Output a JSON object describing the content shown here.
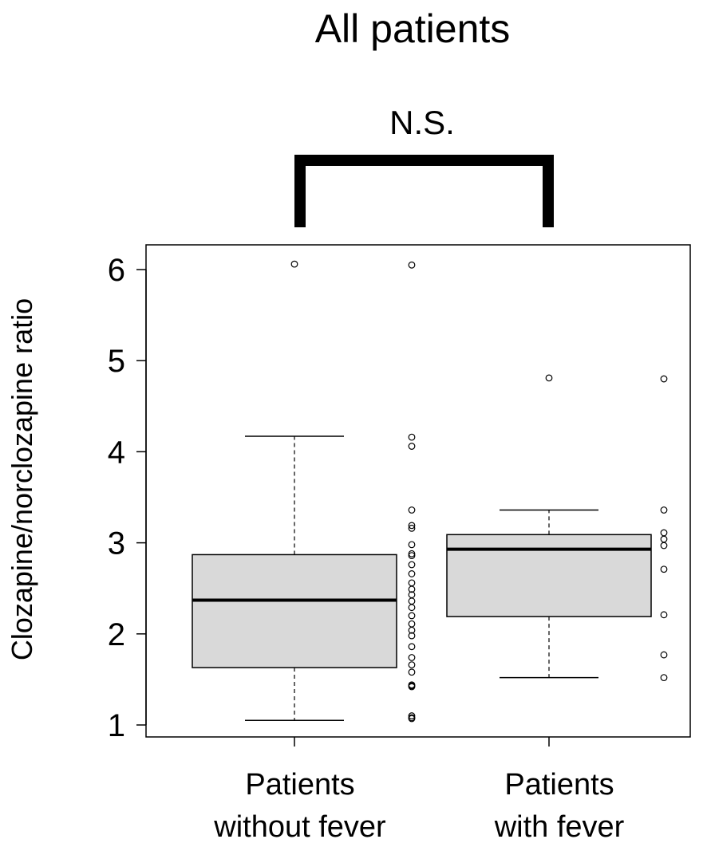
{
  "chart_data": {
    "type": "box",
    "title": "All patients",
    "annotation": "N.S.",
    "xlabel": "",
    "ylabel": "Clozapine/norclozapine ratio",
    "yticks": [
      1,
      2,
      3,
      4,
      5,
      6
    ],
    "ylim": [
      0.9,
      6.3
    ],
    "grid": false,
    "legend": "none",
    "box_fill": "#d9d9d9",
    "groups": [
      {
        "label_lines": [
          "Patients",
          "without fever"
        ],
        "whisker_low": 1.05,
        "q1": 1.63,
        "median": 2.37,
        "q3": 2.87,
        "whisker_high": 4.17,
        "outliers": [
          6.06
        ],
        "points": [
          6.05,
          4.16,
          4.06,
          3.36,
          3.19,
          3.16,
          2.98,
          2.88,
          2.86,
          2.76,
          2.66,
          2.56,
          2.49,
          2.43,
          2.36,
          2.29,
          2.2,
          2.11,
          2.04,
          1.98,
          1.86,
          1.74,
          1.66,
          1.58,
          1.44,
          1.43,
          1.42,
          1.1,
          1.08,
          1.07
        ]
      },
      {
        "label_lines": [
          "Patients",
          "with fever"
        ],
        "whisker_low": 1.52,
        "q1": 2.19,
        "median": 2.93,
        "q3": 3.09,
        "whisker_high": 3.36,
        "outliers": [
          4.81
        ],
        "points": [
          4.8,
          3.36,
          3.11,
          3.04,
          2.97,
          2.71,
          2.21,
          1.77,
          1.52
        ]
      }
    ]
  }
}
